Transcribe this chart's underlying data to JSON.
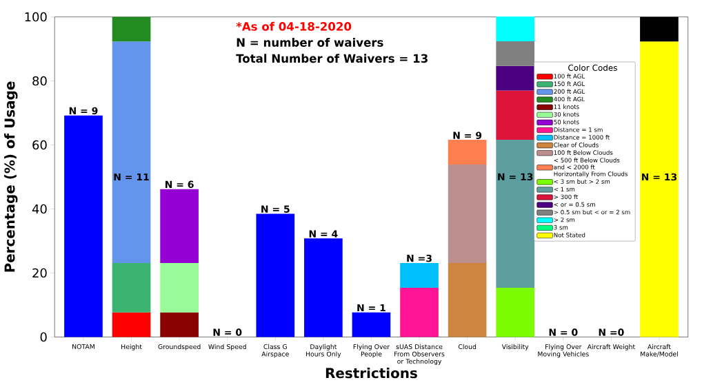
{
  "chart_data": {
    "type": "bar",
    "stacked": true,
    "xlabel": "Restrictions",
    "ylabel": "Percentage (%) of Usage",
    "categories": [
      "NOTAM",
      "Height",
      "Groundspeed",
      "Wind Speed",
      "Class G Airspace",
      "Daylight Hours Only",
      "Flying Over People",
      "sUAS Distance From Observers or Technology",
      "Cloud",
      "Visibility",
      "Flying Over Moving Vehicles",
      "Aircraft Weight",
      "Aircraft Make/Model"
    ],
    "ylim": [
      0,
      100
    ],
    "yticks": [
      0,
      20,
      40,
      60,
      80,
      100
    ],
    "legend": "top right",
    "legend_title": "Color Codes",
    "series": [
      {
        "color": "#0000ff",
        "values": [
          69.2,
          null,
          null,
          0,
          38.5,
          30.8,
          7.7,
          null,
          null,
          null,
          0,
          0,
          null
        ]
      },
      {
        "name": "100 ft AGL",
        "color": "#ff0000",
        "values": [
          null,
          7.7,
          null,
          null,
          null,
          null,
          null,
          null,
          null,
          null,
          null,
          null,
          null
        ]
      },
      {
        "name": "150 ft AGL",
        "color": "#3cb371",
        "values": [
          null,
          15.4,
          null,
          null,
          null,
          null,
          null,
          null,
          null,
          null,
          null,
          null,
          null
        ]
      },
      {
        "name": "200 ft AGL",
        "color": "#6495ed",
        "values": [
          null,
          69.2,
          null,
          null,
          null,
          null,
          null,
          null,
          null,
          null,
          null,
          null,
          null
        ]
      },
      {
        "name": "400 ft AGL",
        "color": "#228b22",
        "values": [
          null,
          7.7,
          null,
          null,
          null,
          null,
          null,
          null,
          null,
          null,
          null,
          null,
          null
        ]
      },
      {
        "name": "11 knots",
        "color": "#8b0000",
        "values": [
          null,
          null,
          7.7,
          null,
          null,
          null,
          null,
          null,
          null,
          null,
          null,
          null,
          null
        ]
      },
      {
        "name": "30 knots",
        "color": "#98fb98",
        "values": [
          null,
          null,
          15.4,
          null,
          null,
          null,
          null,
          null,
          null,
          null,
          null,
          null,
          null
        ]
      },
      {
        "name": "50 knots",
        "color": "#9400d3",
        "values": [
          null,
          null,
          23.1,
          null,
          null,
          null,
          null,
          null,
          null,
          null,
          null,
          null,
          null
        ]
      },
      {
        "name": "Distance = 1 sm",
        "color": "#ff1493",
        "values": [
          null,
          null,
          null,
          null,
          null,
          null,
          null,
          15.4,
          null,
          null,
          null,
          null,
          null
        ]
      },
      {
        "name": "Distance = 1000 ft",
        "color": "#00bfff",
        "values": [
          null,
          null,
          null,
          null,
          null,
          null,
          null,
          7.7,
          null,
          null,
          null,
          null,
          null
        ]
      },
      {
        "name": "Clear of Clouds",
        "color": "#cd853f",
        "values": [
          null,
          null,
          null,
          null,
          null,
          null,
          null,
          null,
          23.1,
          null,
          null,
          null,
          null
        ]
      },
      {
        "name": "100 ft Below Clouds",
        "color": "#bc8f8f",
        "values": [
          null,
          null,
          null,
          null,
          null,
          null,
          null,
          null,
          30.8,
          null,
          null,
          null,
          null
        ]
      },
      {
        "name": "< 500 ft Below Clouds and < 2000 ft Horizontally From Clouds",
        "color": "#ff7f50",
        "values": [
          null,
          null,
          null,
          null,
          null,
          null,
          null,
          null,
          7.7,
          null,
          null,
          null,
          null
        ]
      },
      {
        "name": "< 3 sm but > 2 sm",
        "color": "#7cfc00",
        "values": [
          null,
          null,
          null,
          null,
          null,
          null,
          null,
          null,
          null,
          15.4,
          null,
          null,
          null
        ]
      },
      {
        "name": "< 1 sm",
        "color": "#5f9ea0",
        "values": [
          null,
          null,
          null,
          null,
          null,
          null,
          null,
          null,
          null,
          46.2,
          null,
          null,
          null
        ]
      },
      {
        "name": "> 300 ft",
        "color": "#dc143c",
        "values": [
          null,
          null,
          null,
          null,
          null,
          null,
          null,
          null,
          null,
          15.4,
          null,
          null,
          null
        ]
      },
      {
        "name": "< or = 0.5 sm",
        "color": "#4b0082",
        "values": [
          null,
          null,
          null,
          null,
          null,
          null,
          null,
          null,
          null,
          7.7,
          null,
          null,
          null
        ]
      },
      {
        "name": "> 0.5 sm but < or = 2 sm",
        "color": "#808080",
        "values": [
          null,
          null,
          null,
          null,
          null,
          null,
          null,
          null,
          null,
          7.7,
          null,
          null,
          null
        ]
      },
      {
        "name": "> 2 sm",
        "color": "#00ffff",
        "values": [
          null,
          null,
          null,
          null,
          null,
          null,
          null,
          null,
          null,
          7.7,
          null,
          null,
          null
        ]
      },
      {
        "name": "3 sm",
        "color": "#00ff7f",
        "values": [
          null,
          null,
          null,
          null,
          null,
          null,
          null,
          null,
          null,
          null,
          null,
          null,
          null
        ]
      },
      {
        "name": "Not Stated",
        "color": "#ffff00",
        "values": [
          null,
          null,
          null,
          null,
          null,
          null,
          null,
          null,
          null,
          null,
          null,
          null,
          92.3
        ]
      },
      {
        "color": "#000000",
        "values": [
          null,
          null,
          null,
          null,
          null,
          null,
          null,
          null,
          null,
          null,
          null,
          null,
          7.7
        ]
      }
    ],
    "annotations": [
      "*As of 04-18-2020",
      "N = number of waivers",
      "Total Number of Waivers = 13",
      {
        "text": "N = 9",
        "x": "NOTAM",
        "y": 69.2
      },
      "N = 11",
      {
        "text": "N = 6",
        "x": "Groundspeed",
        "y": 46.2
      },
      {
        "text": "N = 0",
        "x": "Wind Speed",
        "y": 0
      },
      {
        "text": "N = 5",
        "x": "Class G Airspace",
        "y": 38.5
      },
      {
        "text": "N = 4",
        "x": "Daylight Hours Only",
        "y": 30.8
      },
      {
        "text": "N = 1",
        "x": "Flying Over People",
        "y": 7.7
      },
      {
        "text": "N =3",
        "x": "sUAS Distance From Observers or Technology",
        "y": 23.1
      },
      {
        "text": "N = 9",
        "x": "Cloud",
        "y": 61.5
      },
      "N = 13",
      {
        "text": "N = 0",
        "x": "Flying Over Moving Vehicles",
        "y": 0
      },
      {
        "text": "N =0",
        "x": "Aircraft Weight",
        "y": 0
      },
      "N = 13"
    ]
  }
}
